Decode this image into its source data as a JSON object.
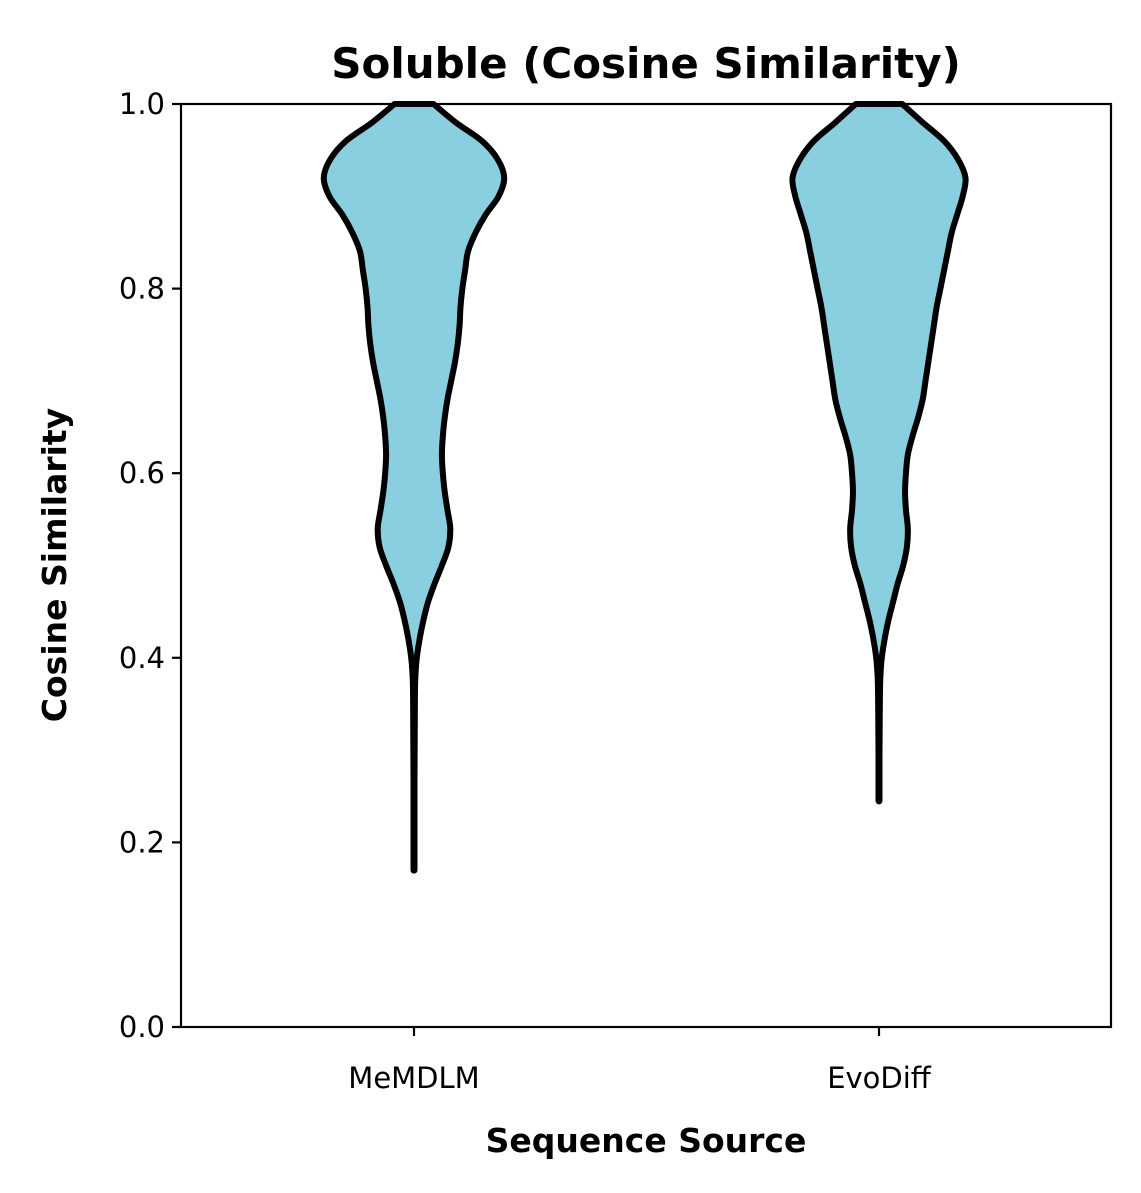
{
  "chart_data": {
    "type": "violin",
    "title": "Soluble (Cosine Similarity)",
    "xlabel": "Sequence Source",
    "ylabel": "Cosine Similarity",
    "ylim": [
      0.0,
      1.0
    ],
    "yticks": [
      0.0,
      0.2,
      0.4,
      0.6,
      0.8,
      1.0
    ],
    "ytick_labels": [
      "0.0",
      "0.2",
      "0.4",
      "0.6",
      "0.8",
      "1.0"
    ],
    "categories": [
      "MeMDLM",
      "EvoDiff"
    ],
    "fill_color": "#89CFE0",
    "edge_color": "#000000",
    "grid": false,
    "series": [
      {
        "category": "MeMDLM",
        "min": 0.17,
        "max": 1.0,
        "density_profile": [
          {
            "y": 1.0,
            "w": 0.021
          },
          {
            "y": 0.98,
            "w": 0.045
          },
          {
            "y": 0.96,
            "w": 0.073
          },
          {
            "y": 0.94,
            "w": 0.09
          },
          {
            "y": 0.92,
            "w": 0.097
          },
          {
            "y": 0.9,
            "w": 0.091
          },
          {
            "y": 0.88,
            "w": 0.077
          },
          {
            "y": 0.86,
            "w": 0.066
          },
          {
            "y": 0.84,
            "w": 0.058
          },
          {
            "y": 0.82,
            "w": 0.055
          },
          {
            "y": 0.8,
            "w": 0.052
          },
          {
            "y": 0.78,
            "w": 0.05
          },
          {
            "y": 0.76,
            "w": 0.049
          },
          {
            "y": 0.74,
            "w": 0.047
          },
          {
            "y": 0.72,
            "w": 0.044
          },
          {
            "y": 0.7,
            "w": 0.04
          },
          {
            "y": 0.68,
            "w": 0.036
          },
          {
            "y": 0.66,
            "w": 0.033
          },
          {
            "y": 0.64,
            "w": 0.031
          },
          {
            "y": 0.62,
            "w": 0.03
          },
          {
            "y": 0.6,
            "w": 0.031
          },
          {
            "y": 0.58,
            "w": 0.033
          },
          {
            "y": 0.56,
            "w": 0.036
          },
          {
            "y": 0.54,
            "w": 0.039
          },
          {
            "y": 0.52,
            "w": 0.037
          },
          {
            "y": 0.5,
            "w": 0.03
          },
          {
            "y": 0.48,
            "w": 0.022
          },
          {
            "y": 0.46,
            "w": 0.015
          },
          {
            "y": 0.44,
            "w": 0.01
          },
          {
            "y": 0.42,
            "w": 0.006
          },
          {
            "y": 0.4,
            "w": 0.003
          },
          {
            "y": 0.38,
            "w": 0.0015
          },
          {
            "y": 0.36,
            "w": 0.001
          },
          {
            "y": 0.32,
            "w": 0.0008
          },
          {
            "y": 0.28,
            "w": 0.0006
          },
          {
            "y": 0.24,
            "w": 0.0004
          },
          {
            "y": 0.2,
            "w": 0.0002
          },
          {
            "y": 0.17,
            "w": 0.0
          }
        ]
      },
      {
        "category": "EvoDiff",
        "min": 0.245,
        "max": 1.0,
        "density_profile": [
          {
            "y": 1.0,
            "w": 0.025
          },
          {
            "y": 0.98,
            "w": 0.047
          },
          {
            "y": 0.96,
            "w": 0.07
          },
          {
            "y": 0.94,
            "w": 0.085
          },
          {
            "y": 0.92,
            "w": 0.093
          },
          {
            "y": 0.9,
            "w": 0.09
          },
          {
            "y": 0.88,
            "w": 0.084
          },
          {
            "y": 0.86,
            "w": 0.078
          },
          {
            "y": 0.84,
            "w": 0.074
          },
          {
            "y": 0.82,
            "w": 0.07
          },
          {
            "y": 0.8,
            "w": 0.066
          },
          {
            "y": 0.78,
            "w": 0.062
          },
          {
            "y": 0.76,
            "w": 0.059
          },
          {
            "y": 0.74,
            "w": 0.056
          },
          {
            "y": 0.72,
            "w": 0.053
          },
          {
            "y": 0.7,
            "w": 0.05
          },
          {
            "y": 0.68,
            "w": 0.047
          },
          {
            "y": 0.66,
            "w": 0.042
          },
          {
            "y": 0.64,
            "w": 0.036
          },
          {
            "y": 0.62,
            "w": 0.031
          },
          {
            "y": 0.6,
            "w": 0.029
          },
          {
            "y": 0.58,
            "w": 0.028
          },
          {
            "y": 0.56,
            "w": 0.029
          },
          {
            "y": 0.54,
            "w": 0.031
          },
          {
            "y": 0.52,
            "w": 0.03
          },
          {
            "y": 0.5,
            "w": 0.026
          },
          {
            "y": 0.48,
            "w": 0.02
          },
          {
            "y": 0.46,
            "w": 0.015
          },
          {
            "y": 0.44,
            "w": 0.01
          },
          {
            "y": 0.42,
            "w": 0.006
          },
          {
            "y": 0.4,
            "w": 0.003
          },
          {
            "y": 0.38,
            "w": 0.0015
          },
          {
            "y": 0.36,
            "w": 0.001
          },
          {
            "y": 0.32,
            "w": 0.0007
          },
          {
            "y": 0.28,
            "w": 0.0004
          },
          {
            "y": 0.245,
            "w": 0.0
          }
        ]
      }
    ]
  }
}
